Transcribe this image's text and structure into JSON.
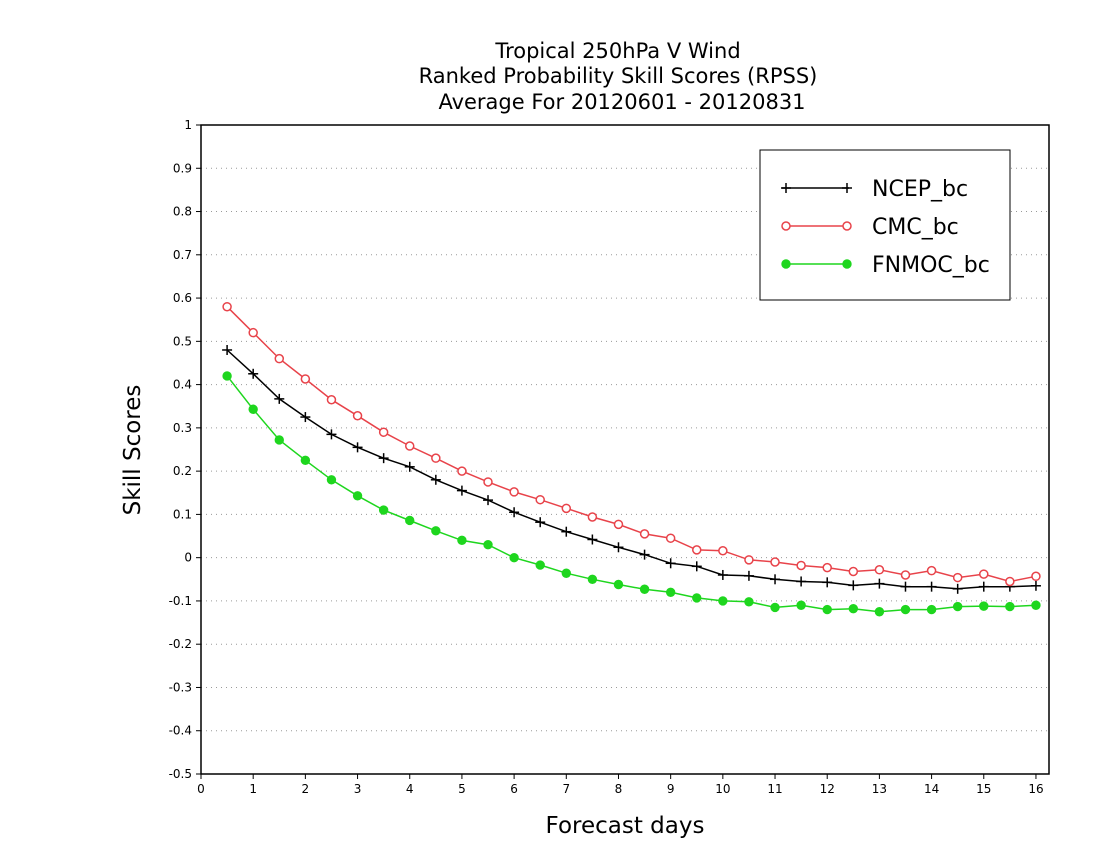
{
  "chart_data": {
    "type": "line",
    "title": [
      "Tropical 250hPa V Wind",
      "Ranked Probability Skill Scores (RPSS)",
      "Average For 20120601 - 20120831"
    ],
    "xlabel": "Forecast days",
    "ylabel": "Skill Scores",
    "xlim": [
      0,
      16.25
    ],
    "ylim": [
      -0.5,
      1
    ],
    "xticks": [
      "0",
      "1",
      "2",
      "3",
      "4",
      "5",
      "6",
      "7",
      "8",
      "9",
      "10",
      "11",
      "12",
      "13",
      "14",
      "15",
      "16"
    ],
    "yticks": [
      "1",
      "0.9",
      "0.8",
      "0.7",
      "0.6",
      "0.5",
      "0.4",
      "0.3",
      "0.2",
      "0.1",
      "0",
      "-0.1",
      "-0.2",
      "-0.3",
      "-0.4",
      "-0.5"
    ],
    "grid": true,
    "legend_position": "top-right",
    "x": [
      0.5,
      1,
      1.5,
      2,
      2.5,
      3,
      3.5,
      4,
      4.5,
      5,
      5.5,
      6,
      6.5,
      7,
      7.5,
      8,
      8.5,
      9,
      9.5,
      10,
      10.5,
      11,
      11.5,
      12,
      12.5,
      13,
      13.5,
      14,
      14.5,
      15,
      15.5,
      16
    ],
    "series": [
      {
        "name": "NCEP_bc",
        "color": "#000000",
        "marker": "plus",
        "values": [
          0.48,
          0.425,
          0.367,
          0.325,
          0.285,
          0.255,
          0.23,
          0.21,
          0.18,
          0.155,
          0.133,
          0.105,
          0.082,
          0.06,
          0.042,
          0.024,
          0.007,
          -0.013,
          -0.02,
          -0.04,
          -0.042,
          -0.05,
          -0.055,
          -0.057,
          -0.064,
          -0.06,
          -0.067,
          -0.067,
          -0.072,
          -0.067,
          -0.067,
          -0.065
        ]
      },
      {
        "name": "CMC_bc",
        "color": "#e8434a",
        "marker": "open-circle",
        "values": [
          0.58,
          0.52,
          0.46,
          0.413,
          0.365,
          0.328,
          0.29,
          0.258,
          0.23,
          0.2,
          0.175,
          0.152,
          0.134,
          0.114,
          0.094,
          0.077,
          0.055,
          0.045,
          0.018,
          0.016,
          -0.005,
          -0.01,
          -0.018,
          -0.023,
          -0.032,
          -0.028,
          -0.04,
          -0.03,
          -0.046,
          -0.038,
          -0.055,
          -0.043
        ]
      },
      {
        "name": "FNMOC_bc",
        "color": "#1ed61e",
        "marker": "filled-circle",
        "values": [
          0.42,
          0.343,
          0.272,
          0.225,
          0.18,
          0.143,
          0.11,
          0.086,
          0.062,
          0.04,
          0.03,
          0,
          -0.017,
          -0.036,
          -0.05,
          -0.062,
          -0.073,
          -0.08,
          -0.093,
          -0.1,
          -0.102,
          -0.115,
          -0.11,
          -0.12,
          -0.118,
          -0.125,
          -0.12,
          -0.12,
          -0.113,
          -0.112,
          -0.113,
          -0.11
        ]
      }
    ]
  }
}
